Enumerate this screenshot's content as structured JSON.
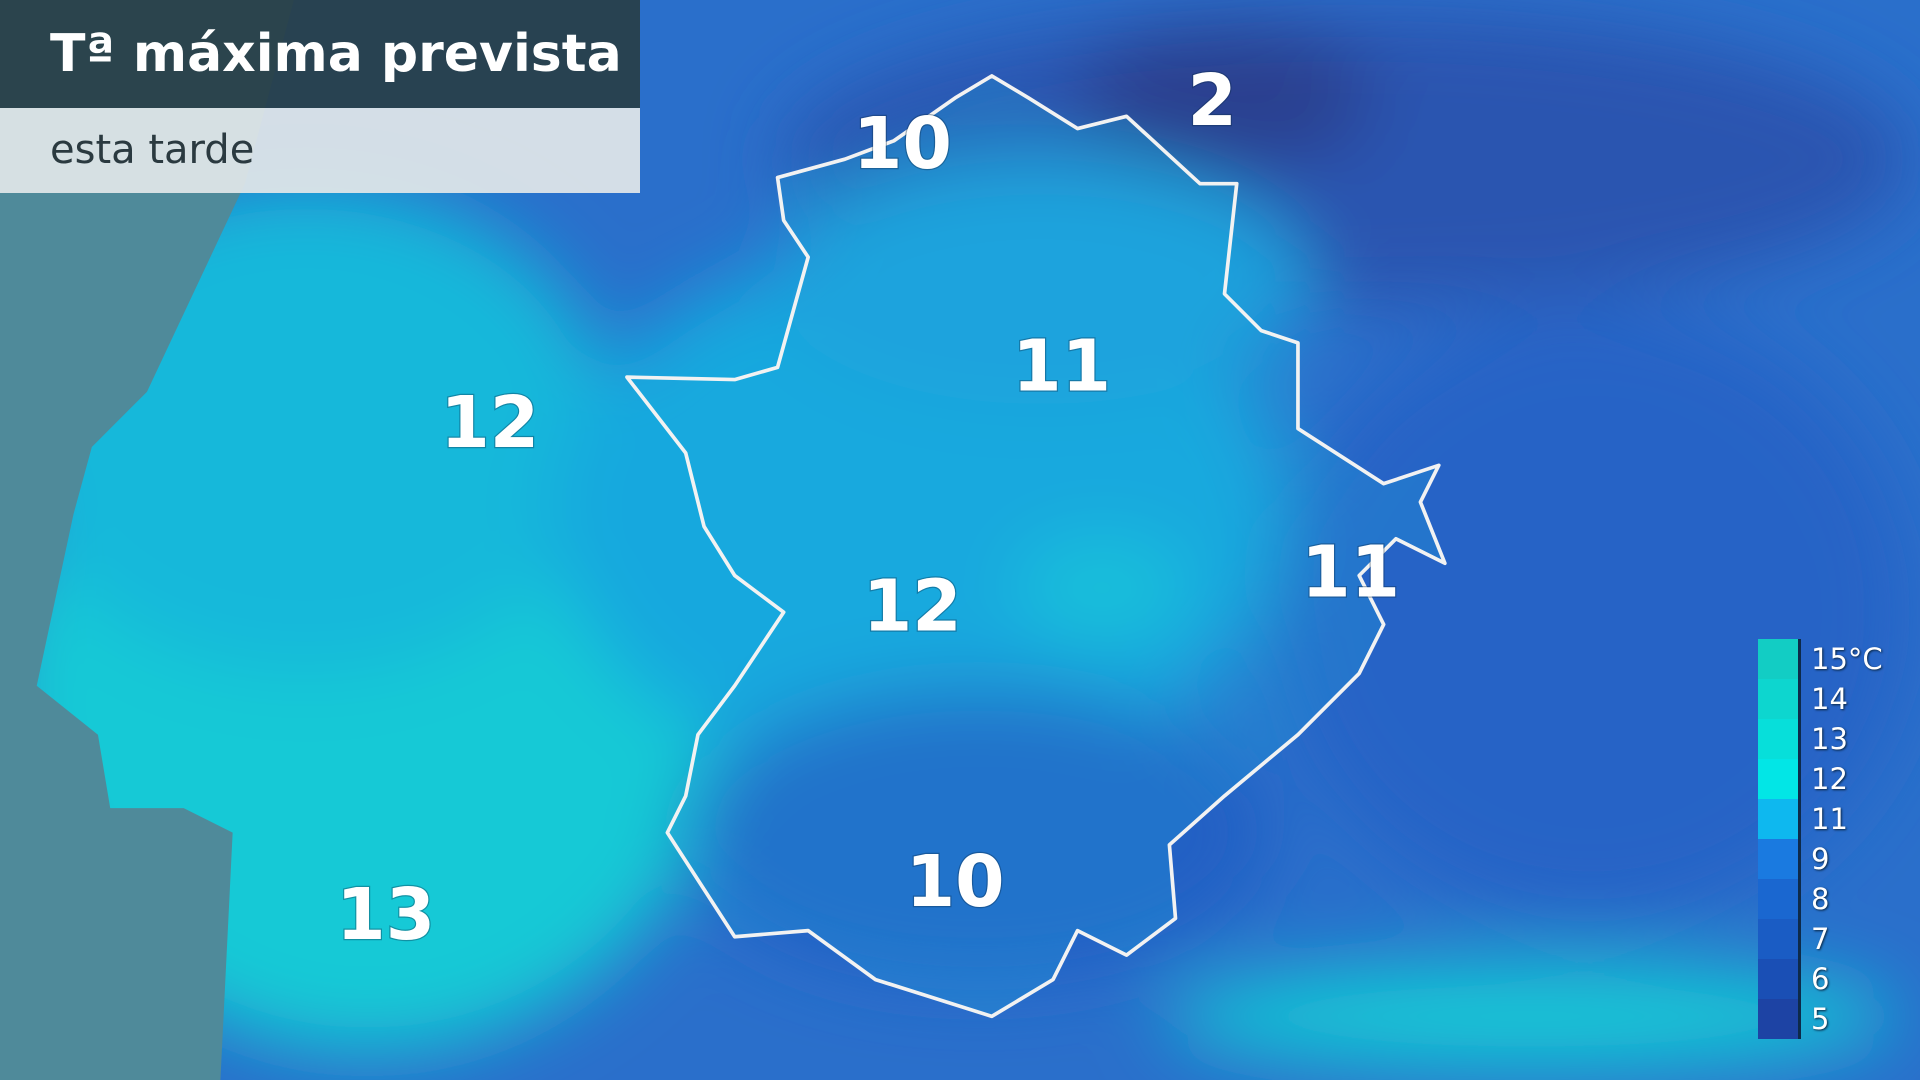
{
  "header": {
    "title": "Tª máxima prevista",
    "subtitle": "esta tarde"
  },
  "map_labels": [
    {
      "value": "10",
      "place": "north Cáceres"
    },
    {
      "value": "2",
      "place": "Sierra de Gredos"
    },
    {
      "value": "11",
      "place": "central north"
    },
    {
      "value": "12",
      "place": "Portugal centre"
    },
    {
      "value": "12",
      "place": "central Extremadura"
    },
    {
      "value": "11",
      "place": "east border"
    },
    {
      "value": "10",
      "place": "south Badajoz"
    },
    {
      "value": "13",
      "place": "Portugal south"
    }
  ],
  "legend": {
    "items": [
      {
        "label": "15°C",
        "color": "#12cdc4"
      },
      {
        "label": "14",
        "color": "#0dd6cf"
      },
      {
        "label": "13",
        "color": "#07dfda"
      },
      {
        "label": "12",
        "color": "#02e6e6"
      },
      {
        "label": "11",
        "color": "#0eb8ef"
      },
      {
        "label": "9",
        "color": "#1a7ae0"
      },
      {
        "label": "8",
        "color": "#1a67d0"
      },
      {
        "label": "7",
        "color": "#1a5cc4"
      },
      {
        "label": "6",
        "color": "#1a4fb5"
      },
      {
        "label": "5",
        "color": "#1d43a4"
      }
    ]
  }
}
